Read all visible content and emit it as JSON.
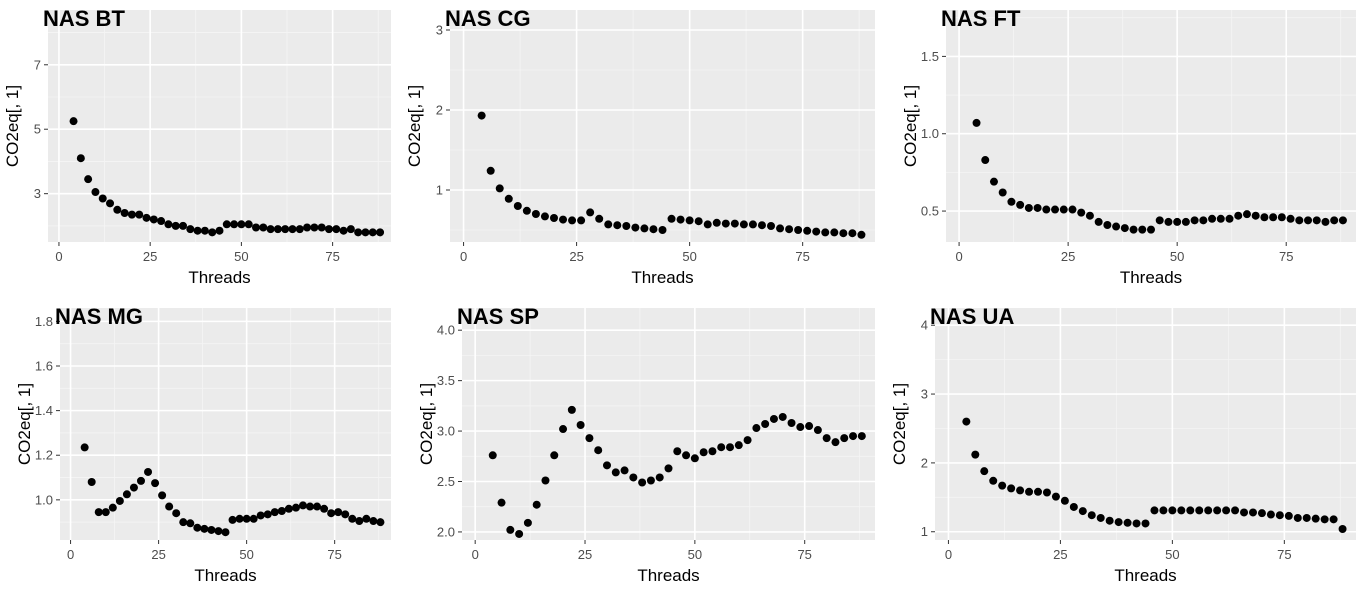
{
  "colors": {
    "panel_bg": "#ebebeb",
    "grid_major": "#ffffff",
    "grid_minor": "#f5f5f5",
    "point": "#000000",
    "tick_text": "#4d4d4d"
  },
  "chart_data": [
    {
      "type": "scatter",
      "title": "NAS BT",
      "xlabel": "Threads",
      "ylabel": "CO2eq[, 1]",
      "xlim": [
        -3,
        91
      ],
      "ylim": [
        1.5,
        8.7
      ],
      "xticks": [
        0,
        25,
        50,
        75
      ],
      "yticks": [
        3,
        5,
        7
      ],
      "x": [
        4,
        6,
        8,
        10,
        12,
        14,
        16,
        18,
        20,
        22,
        24,
        26,
        28,
        30,
        32,
        34,
        36,
        38,
        40,
        42,
        44,
        46,
        48,
        50,
        52,
        54,
        56,
        58,
        60,
        62,
        64,
        66,
        68,
        70,
        72,
        74,
        76,
        78,
        80,
        82,
        84,
        86,
        88
      ],
      "y": [
        5.25,
        4.1,
        3.45,
        3.05,
        2.85,
        2.7,
        2.5,
        2.4,
        2.35,
        2.35,
        2.25,
        2.2,
        2.15,
        2.05,
        2.0,
        2.0,
        1.9,
        1.85,
        1.85,
        1.8,
        1.85,
        2.05,
        2.05,
        2.05,
        2.05,
        1.95,
        1.95,
        1.9,
        1.9,
        1.9,
        1.9,
        1.9,
        1.95,
        1.95,
        1.95,
        1.9,
        1.9,
        1.85,
        1.9,
        1.8,
        1.8,
        1.8,
        1.8
      ]
    },
    {
      "type": "scatter",
      "title": "NAS CG",
      "xlabel": "Threads",
      "ylabel": "CO2eq[, 1]",
      "xlim": [
        -3,
        91
      ],
      "ylim": [
        0.35,
        3.25
      ],
      "xticks": [
        0,
        25,
        50,
        75
      ],
      "yticks": [
        1,
        2,
        3
      ],
      "x": [
        4,
        6,
        8,
        10,
        12,
        14,
        16,
        18,
        20,
        22,
        24,
        26,
        28,
        30,
        32,
        34,
        36,
        38,
        40,
        42,
        44,
        46,
        48,
        50,
        52,
        54,
        56,
        58,
        60,
        62,
        64,
        66,
        68,
        70,
        72,
        74,
        76,
        78,
        80,
        82,
        84,
        86,
        88
      ],
      "y": [
        1.93,
        1.24,
        1.02,
        0.89,
        0.8,
        0.74,
        0.7,
        0.67,
        0.65,
        0.63,
        0.62,
        0.62,
        0.72,
        0.64,
        0.57,
        0.56,
        0.55,
        0.53,
        0.52,
        0.51,
        0.5,
        0.64,
        0.63,
        0.62,
        0.61,
        0.57,
        0.59,
        0.58,
        0.58,
        0.57,
        0.57,
        0.56,
        0.55,
        0.52,
        0.51,
        0.5,
        0.49,
        0.48,
        0.47,
        0.47,
        0.46,
        0.46,
        0.44
      ]
    },
    {
      "type": "scatter",
      "title": "NAS FT",
      "xlabel": "Threads",
      "ylabel": "CO2eq[, 1]",
      "xlim": [
        -3,
        91
      ],
      "ylim": [
        0.3,
        1.8
      ],
      "xticks": [
        0,
        25,
        50,
        75
      ],
      "yticks": [
        0.5,
        1.0,
        1.5
      ],
      "x": [
        4,
        6,
        8,
        10,
        12,
        14,
        16,
        18,
        20,
        22,
        24,
        26,
        28,
        30,
        32,
        34,
        36,
        38,
        40,
        42,
        44,
        46,
        48,
        50,
        52,
        54,
        56,
        58,
        60,
        62,
        64,
        66,
        68,
        70,
        72,
        74,
        76,
        78,
        80,
        82,
        84,
        86,
        88
      ],
      "y": [
        1.07,
        0.83,
        0.69,
        0.62,
        0.56,
        0.54,
        0.52,
        0.52,
        0.51,
        0.51,
        0.51,
        0.51,
        0.49,
        0.47,
        0.43,
        0.41,
        0.4,
        0.39,
        0.38,
        0.38,
        0.38,
        0.44,
        0.43,
        0.43,
        0.43,
        0.44,
        0.44,
        0.45,
        0.45,
        0.45,
        0.47,
        0.48,
        0.47,
        0.46,
        0.46,
        0.46,
        0.45,
        0.44,
        0.44,
        0.44,
        0.43,
        0.44,
        0.44
      ]
    },
    {
      "type": "scatter",
      "title": "NAS MG",
      "xlabel": "Threads",
      "ylabel": "CO2eq[, 1]",
      "xlim": [
        -3,
        91
      ],
      "ylim": [
        0.82,
        1.86
      ],
      "xticks": [
        0,
        25,
        50,
        75
      ],
      "yticks": [
        1.0,
        1.2,
        1.4,
        1.6,
        1.8
      ],
      "x": [
        4,
        6,
        8,
        10,
        12,
        14,
        16,
        18,
        20,
        22,
        24,
        26,
        28,
        30,
        32,
        34,
        36,
        38,
        40,
        42,
        44,
        46,
        48,
        50,
        52,
        54,
        56,
        58,
        60,
        62,
        64,
        66,
        68,
        70,
        72,
        74,
        76,
        78,
        80,
        82,
        84,
        86,
        88
      ],
      "y": [
        1.235,
        1.08,
        0.945,
        0.945,
        0.965,
        0.995,
        1.025,
        1.055,
        1.085,
        1.125,
        1.075,
        1.02,
        0.97,
        0.94,
        0.9,
        0.895,
        0.875,
        0.87,
        0.865,
        0.86,
        0.855,
        0.91,
        0.915,
        0.915,
        0.915,
        0.93,
        0.935,
        0.945,
        0.95,
        0.96,
        0.965,
        0.975,
        0.97,
        0.97,
        0.96,
        0.94,
        0.945,
        0.935,
        0.915,
        0.905,
        0.915,
        0.905,
        0.9
      ]
    },
    {
      "type": "scatter",
      "title": "NAS SP",
      "xlabel": "Threads",
      "ylabel": "CO2eq[, 1]",
      "xlim": [
        -3,
        91
      ],
      "ylim": [
        1.92,
        4.22
      ],
      "xticks": [
        0,
        25,
        50,
        75
      ],
      "yticks": [
        2.0,
        2.5,
        3.0,
        3.5,
        4.0
      ],
      "x": [
        4,
        6,
        8,
        10,
        12,
        14,
        16,
        18,
        20,
        22,
        24,
        26,
        28,
        30,
        32,
        34,
        36,
        38,
        40,
        42,
        44,
        46,
        48,
        50,
        52,
        54,
        56,
        58,
        60,
        62,
        64,
        66,
        68,
        70,
        72,
        74,
        76,
        78,
        80,
        82,
        84,
        86,
        88
      ],
      "y": [
        2.76,
        2.29,
        2.02,
        1.98,
        2.09,
        2.27,
        2.51,
        2.76,
        3.02,
        3.21,
        3.06,
        2.93,
        2.81,
        2.66,
        2.59,
        2.61,
        2.54,
        2.49,
        2.51,
        2.54,
        2.63,
        2.8,
        2.76,
        2.73,
        2.79,
        2.8,
        2.84,
        2.84,
        2.86,
        2.91,
        3.03,
        3.07,
        3.12,
        3.14,
        3.08,
        3.04,
        3.05,
        3.01,
        2.93,
        2.89,
        2.93,
        2.95,
        2.95
      ]
    },
    {
      "type": "scatter",
      "title": "NAS UA",
      "xlabel": "Threads",
      "ylabel": "CO2eq[, 1]",
      "xlim": [
        -3,
        91
      ],
      "ylim": [
        0.88,
        4.25
      ],
      "xticks": [
        0,
        25,
        50,
        75
      ],
      "yticks": [
        1,
        2,
        3,
        4
      ],
      "x": [
        4,
        6,
        8,
        10,
        12,
        14,
        16,
        18,
        20,
        22,
        24,
        26,
        28,
        30,
        32,
        34,
        36,
        38,
        40,
        42,
        44,
        46,
        48,
        50,
        52,
        54,
        56,
        58,
        60,
        62,
        64,
        66,
        68,
        70,
        72,
        74,
        76,
        78,
        80,
        82,
        84,
        86,
        88
      ],
      "y": [
        2.6,
        2.12,
        1.88,
        1.74,
        1.67,
        1.63,
        1.6,
        1.58,
        1.58,
        1.57,
        1.51,
        1.45,
        1.36,
        1.3,
        1.24,
        1.2,
        1.16,
        1.14,
        1.13,
        1.12,
        1.12,
        1.31,
        1.31,
        1.31,
        1.31,
        1.31,
        1.31,
        1.31,
        1.31,
        1.31,
        1.31,
        1.28,
        1.28,
        1.27,
        1.25,
        1.24,
        1.23,
        1.2,
        1.2,
        1.19,
        1.18,
        1.18,
        1.04
      ]
    }
  ]
}
